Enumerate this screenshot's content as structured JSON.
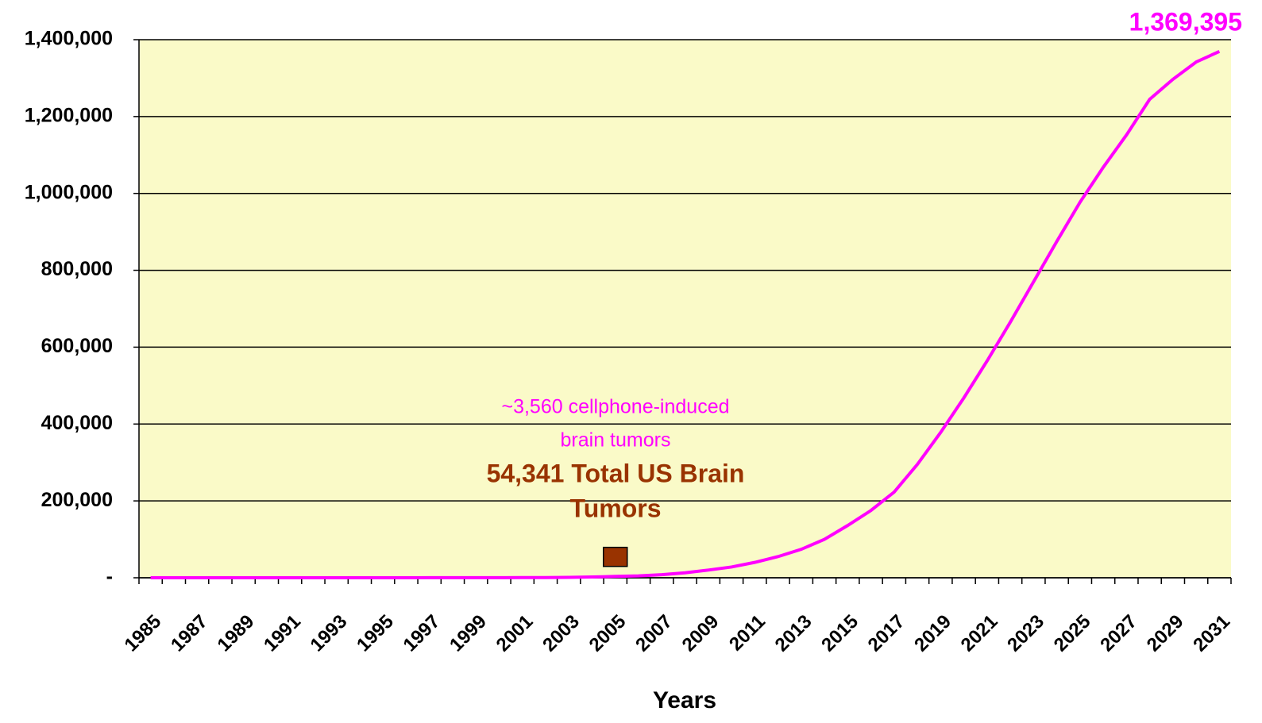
{
  "chart_data": {
    "type": "line",
    "x_label": "Years",
    "categories": [
      "1985",
      null,
      "1987",
      null,
      "1989",
      null,
      "1991",
      null,
      "1993",
      null,
      "1995",
      null,
      "1997",
      null,
      "1999",
      null,
      "2001",
      null,
      "2003",
      null,
      "2005",
      null,
      "2007",
      null,
      "2009",
      null,
      "2011",
      null,
      "2013",
      null,
      "2015",
      null,
      "2017",
      null,
      "2019",
      null,
      "2021",
      null,
      "2023",
      null,
      "2025",
      null,
      "2027",
      null,
      "2029",
      null,
      "2031"
    ],
    "series": [
      {
        "color": "#ff00ff",
        "values": [
          0,
          0,
          0,
          0,
          0,
          0,
          0,
          0,
          0,
          0,
          0,
          100,
          150,
          200,
          250,
          300,
          400,
          500,
          1000,
          2000,
          3560,
          5000,
          8000,
          13000,
          20000,
          28000,
          40000,
          55000,
          74000,
          100000,
          136000,
          175000,
          223000,
          295000,
          378000,
          468000,
          564000,
          665000,
          770000,
          875000,
          977000,
          1068000,
          1152000,
          1245000,
          1297000,
          1342000,
          1369395
        ],
        "value_labels": [
          null,
          null,
          null,
          null,
          null,
          null,
          null,
          null,
          null,
          null,
          null,
          null,
          null,
          null,
          null,
          null,
          null,
          null,
          null,
          null,
          null,
          null,
          null,
          null,
          null,
          null,
          null,
          null,
          null,
          null,
          null,
          null,
          null,
          null,
          null,
          null,
          null,
          null,
          null,
          null,
          null,
          null,
          null,
          null,
          null,
          null,
          "1,369,395"
        ]
      },
      {
        "color": "#993300",
        "marker": "square",
        "values": [
          null,
          null,
          null,
          null,
          null,
          null,
          null,
          null,
          null,
          null,
          null,
          null,
          null,
          null,
          null,
          null,
          null,
          null,
          null,
          null,
          54341,
          null,
          null,
          null,
          null,
          null,
          null,
          null,
          null,
          null,
          null,
          null,
          null,
          null,
          null,
          null,
          null,
          null,
          null,
          null,
          null,
          null,
          null,
          null,
          null,
          null,
          null
        ]
      }
    ],
    "ylim": [
      0,
      1400000
    ],
    "yticks": [
      {
        "value": 0,
        "label": "-"
      },
      {
        "value": 200000,
        "label": "200,000"
      },
      {
        "value": 400000,
        "label": "400,000"
      },
      {
        "value": 600000,
        "label": "600,000"
      },
      {
        "value": 800000,
        "label": "800,000"
      },
      {
        "value": 1000000,
        "label": "1,000,000"
      },
      {
        "value": 1200000,
        "label": "1,200,000"
      },
      {
        "value": 1400000,
        "label": "1,400,000"
      }
    ],
    "grid": true,
    "plot_background": "#fafac8",
    "annotations": [
      {
        "lines": [
          "~3,560 cellphone-induced",
          "brain tumors"
        ],
        "color": "#ff00ff"
      },
      {
        "lines": [
          "54,341 Total US Brain",
          "Tumors"
        ],
        "color": "#993300"
      }
    ]
  }
}
